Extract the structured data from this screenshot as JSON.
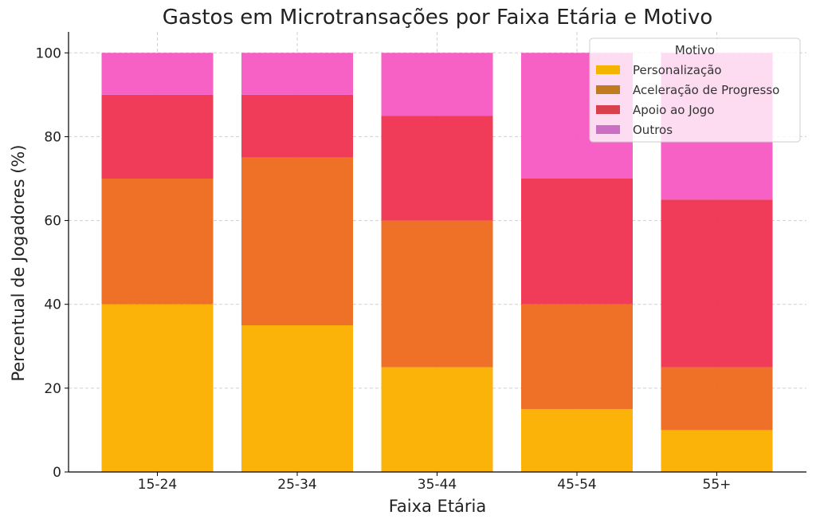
{
  "chart_data": {
    "type": "bar",
    "stacked": true,
    "title": "Gastos em Microtransações por Faixa Etária e Motivo",
    "xlabel": "Faixa Etária",
    "ylabel": "Percentual de Jogadores (%)",
    "categories": [
      "15-24",
      "25-34",
      "35-44",
      "45-54",
      "55+"
    ],
    "ylim": [
      0,
      105
    ],
    "yticks": [
      0,
      20,
      40,
      60,
      80,
      100
    ],
    "grid": true,
    "legend": {
      "title": "Motivo",
      "position": "top-right"
    },
    "series": [
      {
        "name": "Personalização",
        "color": "#fbb000",
        "values": [
          40,
          35,
          25,
          15,
          10
        ]
      },
      {
        "name": "Aceleração de Progresso",
        "color": "#ee6a1e",
        "values": [
          30,
          40,
          35,
          25,
          15
        ]
      },
      {
        "name": "Apoio ao Jogo",
        "color": "#f03452",
        "values": [
          20,
          15,
          25,
          30,
          40
        ]
      },
      {
        "name": "Outros",
        "color": "#f75ac3",
        "values": [
          10,
          10,
          15,
          30,
          35
        ]
      }
    ],
    "legend_swatch_colors": [
      "#f4b400",
      "#c27a1e",
      "#d8404e",
      "#cc6fc4"
    ]
  }
}
